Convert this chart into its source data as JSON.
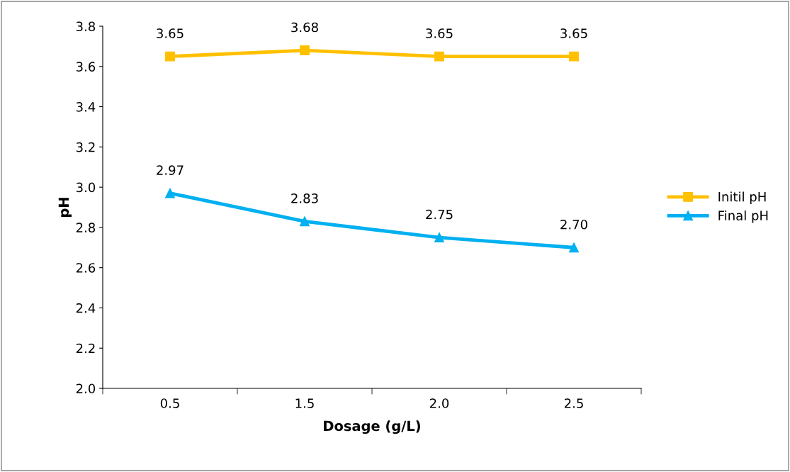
{
  "chart_data": {
    "type": "line",
    "xlabel": "Dosage (g/L)",
    "ylabel": "pH",
    "categories": [
      "0.5",
      "1.5",
      "2.0",
      "2.5"
    ],
    "series": [
      {
        "name": "Initil pH",
        "color": "#ffc000",
        "marker": "square",
        "values": [
          3.65,
          3.68,
          3.65,
          3.65
        ],
        "value_labels": [
          "3.65",
          "3.68",
          "3.65",
          "3.65"
        ]
      },
      {
        "name": "Final pH",
        "color": "#00b0f0",
        "marker": "triangle",
        "values": [
          2.97,
          2.83,
          2.75,
          2.7
        ],
        "value_labels": [
          "2.97",
          "2.83",
          "2.75",
          "2.70"
        ]
      }
    ],
    "ylim": [
      2.0,
      3.8
    ],
    "yticks": [
      {
        "value": 2.0,
        "label": "2.0"
      },
      2.2,
      2.4,
      2.6,
      2.8,
      {
        "value": 3.0,
        "label": "3.0"
      },
      3.2,
      3.4,
      3.6,
      3.8
    ],
    "grid": false,
    "legend": "right",
    "line_style": "solid"
  }
}
